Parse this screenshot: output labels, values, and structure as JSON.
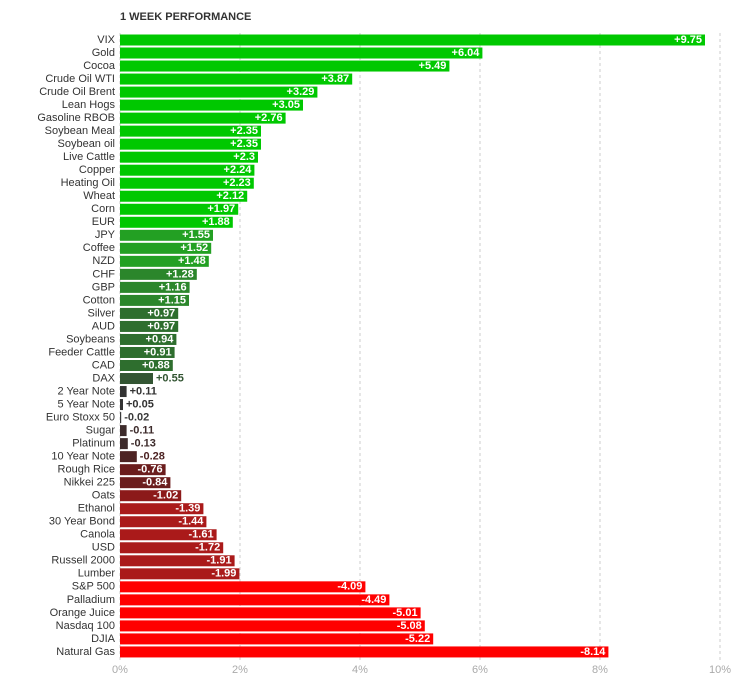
{
  "chart_data": {
    "type": "hbar",
    "title": "1 WEEK PERFORMANCE",
    "categories": [
      "VIX",
      "Gold",
      "Cocoa",
      "Crude Oil WTI",
      "Crude Oil Brent",
      "Lean Hogs",
      "Gasoline RBOB",
      "Soybean Meal",
      "Soybean oil",
      "Live Cattle",
      "Copper",
      "Heating Oil",
      "Wheat",
      "Corn",
      "EUR",
      "JPY",
      "Coffee",
      "NZD",
      "CHF",
      "GBP",
      "Cotton",
      "Silver",
      "AUD",
      "Soybeans",
      "Feeder Cattle",
      "CAD",
      "DAX",
      "2 Year Note",
      "5 Year Note",
      "Euro Stoxx 50",
      "Sugar",
      "Platinum",
      "10 Year Note",
      "Rough Rice",
      "Nikkei 225",
      "Oats",
      "Ethanol",
      "30 Year Bond",
      "Canola",
      "USD",
      "Russell 2000",
      "Lumber",
      "S&P 500",
      "Palladium",
      "Orange Juice",
      "Nasdaq 100",
      "DJIA",
      "Natural Gas"
    ],
    "values": [
      9.75,
      6.04,
      5.49,
      3.87,
      3.29,
      3.05,
      2.76,
      2.35,
      2.35,
      2.3,
      2.24,
      2.23,
      2.12,
      1.97,
      1.88,
      1.55,
      1.52,
      1.48,
      1.28,
      1.16,
      1.15,
      0.97,
      0.97,
      0.94,
      0.91,
      0.88,
      0.55,
      0.11,
      0.05,
      -0.02,
      -0.11,
      -0.13,
      -0.28,
      -0.76,
      -0.84,
      -1.02,
      -1.39,
      -1.44,
      -1.61,
      -1.72,
      -1.91,
      -1.99,
      -4.09,
      -4.49,
      -5.01,
      -5.08,
      -5.22,
      -8.14
    ],
    "value_labels": [
      "+9.75",
      "+6.04",
      "+5.49",
      "+3.87",
      "+3.29",
      "+3.05",
      "+2.76",
      "+2.35",
      "+2.35",
      "+2.3",
      "+2.24",
      "+2.23",
      "+2.12",
      "+1.97",
      "+1.88",
      "+1.55",
      "+1.52",
      "+1.48",
      "+1.28",
      "+1.16",
      "+1.15",
      "+0.97",
      "+0.97",
      "+0.94",
      "+0.91",
      "+0.88",
      "+0.55",
      "+0.11",
      "+0.05",
      "-0.02",
      "-0.11",
      "-0.13",
      "-0.28",
      "-0.76",
      "-0.84",
      "-1.02",
      "-1.39",
      "-1.44",
      "-1.61",
      "-1.72",
      "-1.91",
      "-1.99",
      "-4.09",
      "-4.49",
      "-5.01",
      "-5.08",
      "-5.22",
      "-8.14"
    ],
    "colors": [
      "#00c800",
      "#00c800",
      "#00c800",
      "#00c800",
      "#00c800",
      "#00c800",
      "#00c800",
      "#00c800",
      "#00c800",
      "#00c800",
      "#00c800",
      "#00c800",
      "#00c800",
      "#00c800",
      "#00c800",
      "#23a023",
      "#23a023",
      "#23a023",
      "#2b862b",
      "#2b862b",
      "#2b862b",
      "#2e6e2e",
      "#2e6e2e",
      "#2e6e2e",
      "#2e6e2e",
      "#2e6e2e",
      "#335533",
      "#333333",
      "#333333",
      "#3a3a3a",
      "#3d2b2b",
      "#3d2b2b",
      "#4d2323",
      "#6b1d1d",
      "#6b1d1d",
      "#8c1a1a",
      "#aa1a1a",
      "#aa1a1a",
      "#aa1a1a",
      "#aa1a1a",
      "#aa1a1a",
      "#aa1a1a",
      "#ff0000",
      "#ff0000",
      "#ff0000",
      "#ff0000",
      "#ff0000",
      "#ff0000"
    ],
    "xlim": [
      0,
      10
    ],
    "xticks": [
      {
        "value": 0,
        "label": "0%"
      },
      {
        "value": 2,
        "label": "2%"
      },
      {
        "value": 4,
        "label": "4%"
      },
      {
        "value": 6,
        "label": "6%"
      },
      {
        "value": 8,
        "label": "8%"
      },
      {
        "value": 10,
        "label": "10%"
      }
    ],
    "grid": true
  }
}
